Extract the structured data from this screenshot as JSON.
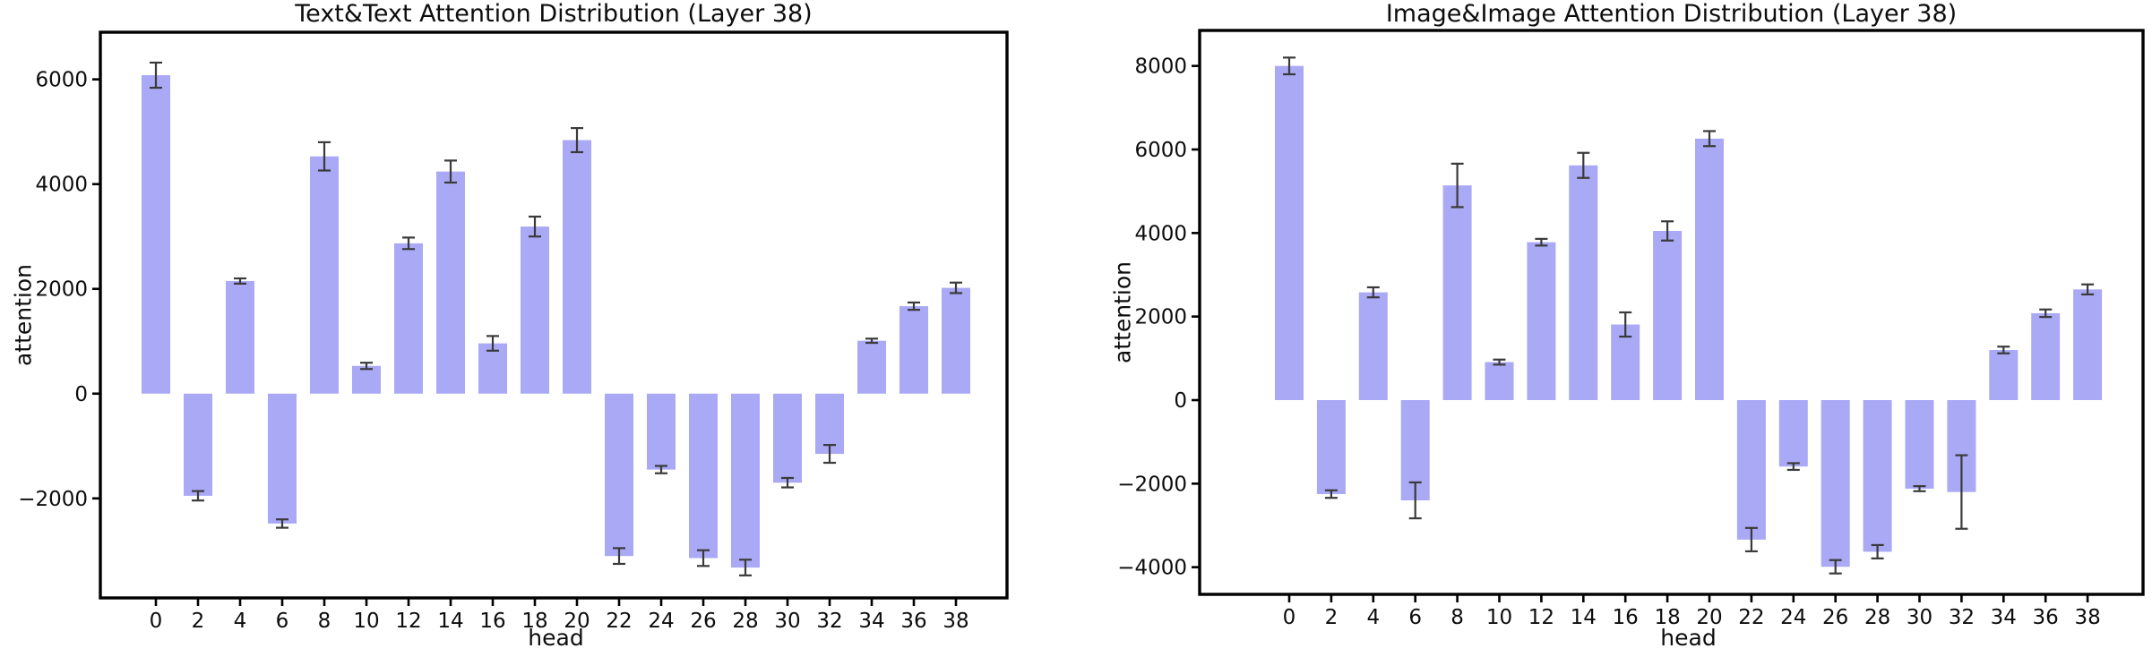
{
  "figure": {
    "background": "#ffffff",
    "bar_color": "#a9a9f5",
    "error_color": "#3a3a3a",
    "spine_color": "#000000",
    "text_color": "#0d0d0d"
  },
  "chart_data": [
    {
      "type": "bar",
      "title": "Text&Text Attention Distribution (Layer 38)",
      "xlabel": "head",
      "ylabel": "attention",
      "legend": null,
      "grid": false,
      "categories": [
        "0",
        "2",
        "4",
        "6",
        "8",
        "10",
        "12",
        "14",
        "16",
        "18",
        "20",
        "22",
        "24",
        "26",
        "28",
        "30",
        "32",
        "34",
        "36",
        "38"
      ],
      "values": [
        6080,
        -1950,
        2150,
        -2480,
        4530,
        530,
        2870,
        4240,
        960,
        3190,
        4840,
        -3100,
        -1450,
        -3140,
        -3320,
        -1700,
        -1150,
        1010,
        1670,
        2020
      ],
      "errors": [
        240,
        90,
        50,
        80,
        270,
        60,
        110,
        210,
        140,
        190,
        230,
        150,
        70,
        150,
        150,
        90,
        170,
        40,
        70,
        100
      ],
      "ylim": [
        -3900,
        6900
      ],
      "yticks": [
        -2000,
        0,
        2000,
        4000,
        6000
      ]
    },
    {
      "type": "bar",
      "title": "Image&Image Attention Distribution (Layer 38)",
      "xlabel": "head",
      "ylabel": "attention",
      "legend": null,
      "grid": false,
      "categories": [
        "0",
        "2",
        "4",
        "6",
        "8",
        "10",
        "12",
        "14",
        "16",
        "18",
        "20",
        "22",
        "24",
        "26",
        "28",
        "30",
        "32",
        "34",
        "36",
        "38"
      ],
      "values": [
        8000,
        -2250,
        2580,
        -2400,
        5140,
        910,
        3780,
        5620,
        1810,
        4050,
        6260,
        -3340,
        -1590,
        -3990,
        -3630,
        -2120,
        -2200,
        1200,
        2080,
        2650
      ],
      "errors": [
        200,
        90,
        120,
        430,
        520,
        60,
        80,
        300,
        290,
        230,
        180,
        280,
        80,
        160,
        160,
        60,
        880,
        80,
        90,
        120
      ],
      "ylim": [
        -4650,
        8850
      ],
      "yticks": [
        -4000,
        -2000,
        0,
        2000,
        4000,
        6000,
        8000
      ]
    }
  ]
}
